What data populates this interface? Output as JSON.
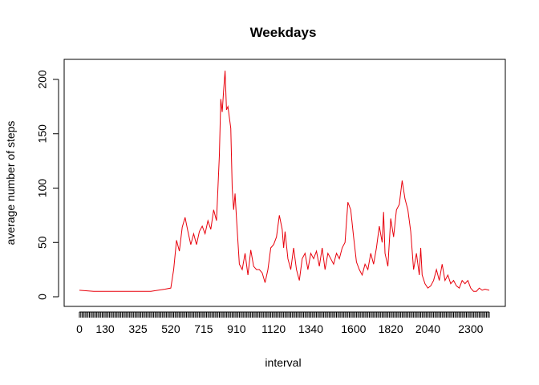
{
  "chart_data": {
    "type": "line",
    "title": "Weekdays",
    "xlabel": "interval",
    "ylabel": "average number of  steps",
    "xlim": [
      0,
      287
    ],
    "ylim": [
      0,
      208
    ],
    "x_tick_labels": [
      "0",
      "130",
      "325",
      "520",
      "715",
      "910",
      "1120",
      "1340",
      "1600",
      "1820",
      "2040",
      "2300"
    ],
    "x_tick_label_index": [
      0,
      18,
      41,
      64,
      87,
      110,
      136,
      162,
      192,
      218,
      244,
      274
    ],
    "x_tick_count": 288,
    "y_ticks": [
      0,
      50,
      100,
      150,
      200
    ],
    "series": [
      {
        "color": "#e8000b",
        "points": [
          [
            0,
            6
          ],
          [
            10,
            5
          ],
          [
            20,
            5
          ],
          [
            30,
            5
          ],
          [
            40,
            5
          ],
          [
            50,
            5
          ],
          [
            55,
            6
          ],
          [
            60,
            7
          ],
          [
            64,
            8
          ],
          [
            66,
            25
          ],
          [
            68,
            52
          ],
          [
            70,
            42
          ],
          [
            72,
            64
          ],
          [
            74,
            73
          ],
          [
            76,
            60
          ],
          [
            78,
            48
          ],
          [
            80,
            58
          ],
          [
            82,
            48
          ],
          [
            84,
            60
          ],
          [
            86,
            65
          ],
          [
            88,
            58
          ],
          [
            90,
            70
          ],
          [
            92,
            62
          ],
          [
            94,
            80
          ],
          [
            96,
            70
          ],
          [
            98,
            130
          ],
          [
            99,
            182
          ],
          [
            100,
            170
          ],
          [
            101,
            190
          ],
          [
            102,
            208
          ],
          [
            103,
            172
          ],
          [
            104,
            175
          ],
          [
            105,
            165
          ],
          [
            106,
            155
          ],
          [
            107,
            100
          ],
          [
            108,
            80
          ],
          [
            109,
            95
          ],
          [
            110,
            72
          ],
          [
            112,
            30
          ],
          [
            114,
            25
          ],
          [
            116,
            40
          ],
          [
            118,
            20
          ],
          [
            120,
            43
          ],
          [
            122,
            28
          ],
          [
            124,
            25
          ],
          [
            126,
            25
          ],
          [
            128,
            22
          ],
          [
            130,
            13
          ],
          [
            132,
            25
          ],
          [
            134,
            45
          ],
          [
            136,
            48
          ],
          [
            138,
            55
          ],
          [
            140,
            75
          ],
          [
            142,
            62
          ],
          [
            143,
            45
          ],
          [
            144,
            60
          ],
          [
            146,
            35
          ],
          [
            148,
            25
          ],
          [
            150,
            45
          ],
          [
            152,
            25
          ],
          [
            154,
            15
          ],
          [
            156,
            35
          ],
          [
            158,
            40
          ],
          [
            160,
            25
          ],
          [
            162,
            40
          ],
          [
            164,
            35
          ],
          [
            166,
            42
          ],
          [
            168,
            28
          ],
          [
            170,
            45
          ],
          [
            172,
            25
          ],
          [
            174,
            40
          ],
          [
            176,
            35
          ],
          [
            178,
            30
          ],
          [
            180,
            40
          ],
          [
            182,
            35
          ],
          [
            184,
            45
          ],
          [
            186,
            50
          ],
          [
            188,
            87
          ],
          [
            190,
            80
          ],
          [
            192,
            55
          ],
          [
            194,
            32
          ],
          [
            196,
            25
          ],
          [
            198,
            20
          ],
          [
            200,
            30
          ],
          [
            202,
            25
          ],
          [
            204,
            40
          ],
          [
            206,
            30
          ],
          [
            208,
            45
          ],
          [
            210,
            65
          ],
          [
            212,
            50
          ],
          [
            213,
            78
          ],
          [
            214,
            40
          ],
          [
            216,
            28
          ],
          [
            218,
            72
          ],
          [
            220,
            55
          ],
          [
            222,
            80
          ],
          [
            224,
            85
          ],
          [
            226,
            107
          ],
          [
            228,
            90
          ],
          [
            230,
            80
          ],
          [
            232,
            60
          ],
          [
            234,
            25
          ],
          [
            236,
            40
          ],
          [
            238,
            20
          ],
          [
            239,
            45
          ],
          [
            240,
            20
          ],
          [
            242,
            12
          ],
          [
            244,
            8
          ],
          [
            246,
            10
          ],
          [
            248,
            15
          ],
          [
            250,
            25
          ],
          [
            252,
            15
          ],
          [
            254,
            30
          ],
          [
            256,
            15
          ],
          [
            258,
            20
          ],
          [
            260,
            12
          ],
          [
            262,
            15
          ],
          [
            264,
            10
          ],
          [
            266,
            8
          ],
          [
            268,
            15
          ],
          [
            270,
            12
          ],
          [
            272,
            15
          ],
          [
            274,
            8
          ],
          [
            276,
            5
          ],
          [
            278,
            5
          ],
          [
            280,
            8
          ],
          [
            282,
            6
          ],
          [
            284,
            7
          ],
          [
            287,
            6
          ]
        ]
      }
    ]
  }
}
